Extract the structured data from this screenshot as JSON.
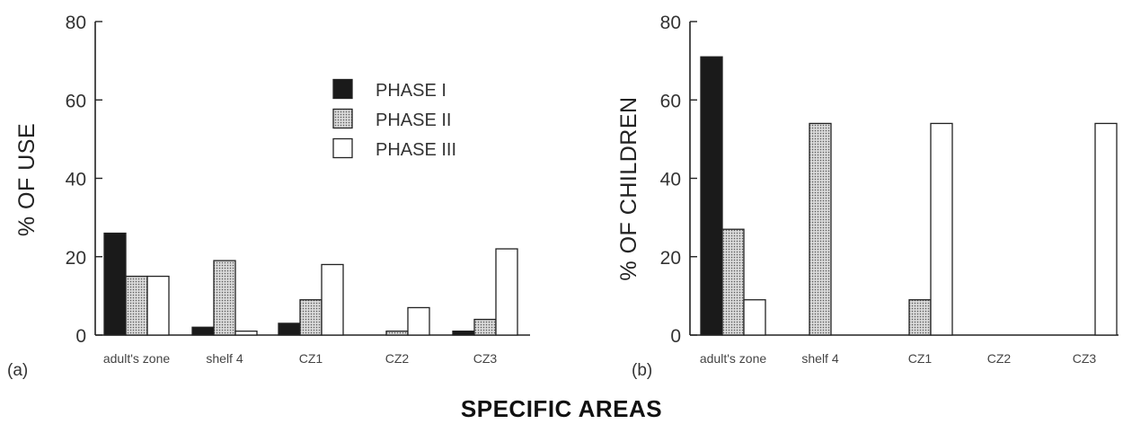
{
  "colors": {
    "phase1": "#1a1a1a",
    "phase2_bg": "#d9d9d9",
    "phase2_dot": "#5a5a5a",
    "phase3": "#ffffff",
    "ink": "#222222"
  },
  "xlabel": "SPECIFIC AREAS",
  "chart_data": [
    {
      "type": "bar",
      "panel_label": "(a)",
      "ylabel": "% OF USE",
      "ylim": [
        0,
        80
      ],
      "yticks": [
        "0",
        "20",
        "40",
        "60",
        "80"
      ],
      "categories": [
        "adult's zone",
        "shelf  4",
        "CZ1",
        "CZ2",
        "CZ3"
      ],
      "legend_position": "top-right",
      "series": [
        {
          "name": "PHASE I",
          "values": [
            26,
            2,
            3,
            0,
            1
          ]
        },
        {
          "name": "PHASE II",
          "values": [
            15,
            19,
            9,
            1,
            4
          ]
        },
        {
          "name": "PHASE III",
          "values": [
            15,
            1,
            18,
            7,
            22
          ]
        }
      ]
    },
    {
      "type": "bar",
      "panel_label": "(b)",
      "ylabel": "% OF CHILDREN",
      "ylim": [
        0,
        80
      ],
      "yticks": [
        "0",
        "20",
        "40",
        "60",
        "80"
      ],
      "categories": [
        "adult's zone",
        "shelf  4",
        "CZ1",
        "CZ2",
        "CZ3"
      ],
      "series": [
        {
          "name": "PHASE I",
          "values": [
            71,
            0,
            0,
            0,
            0
          ]
        },
        {
          "name": "PHASE II",
          "values": [
            27,
            54,
            9,
            0,
            0
          ]
        },
        {
          "name": "PHASE III",
          "values": [
            9,
            0,
            54,
            0,
            54
          ]
        }
      ]
    }
  ]
}
